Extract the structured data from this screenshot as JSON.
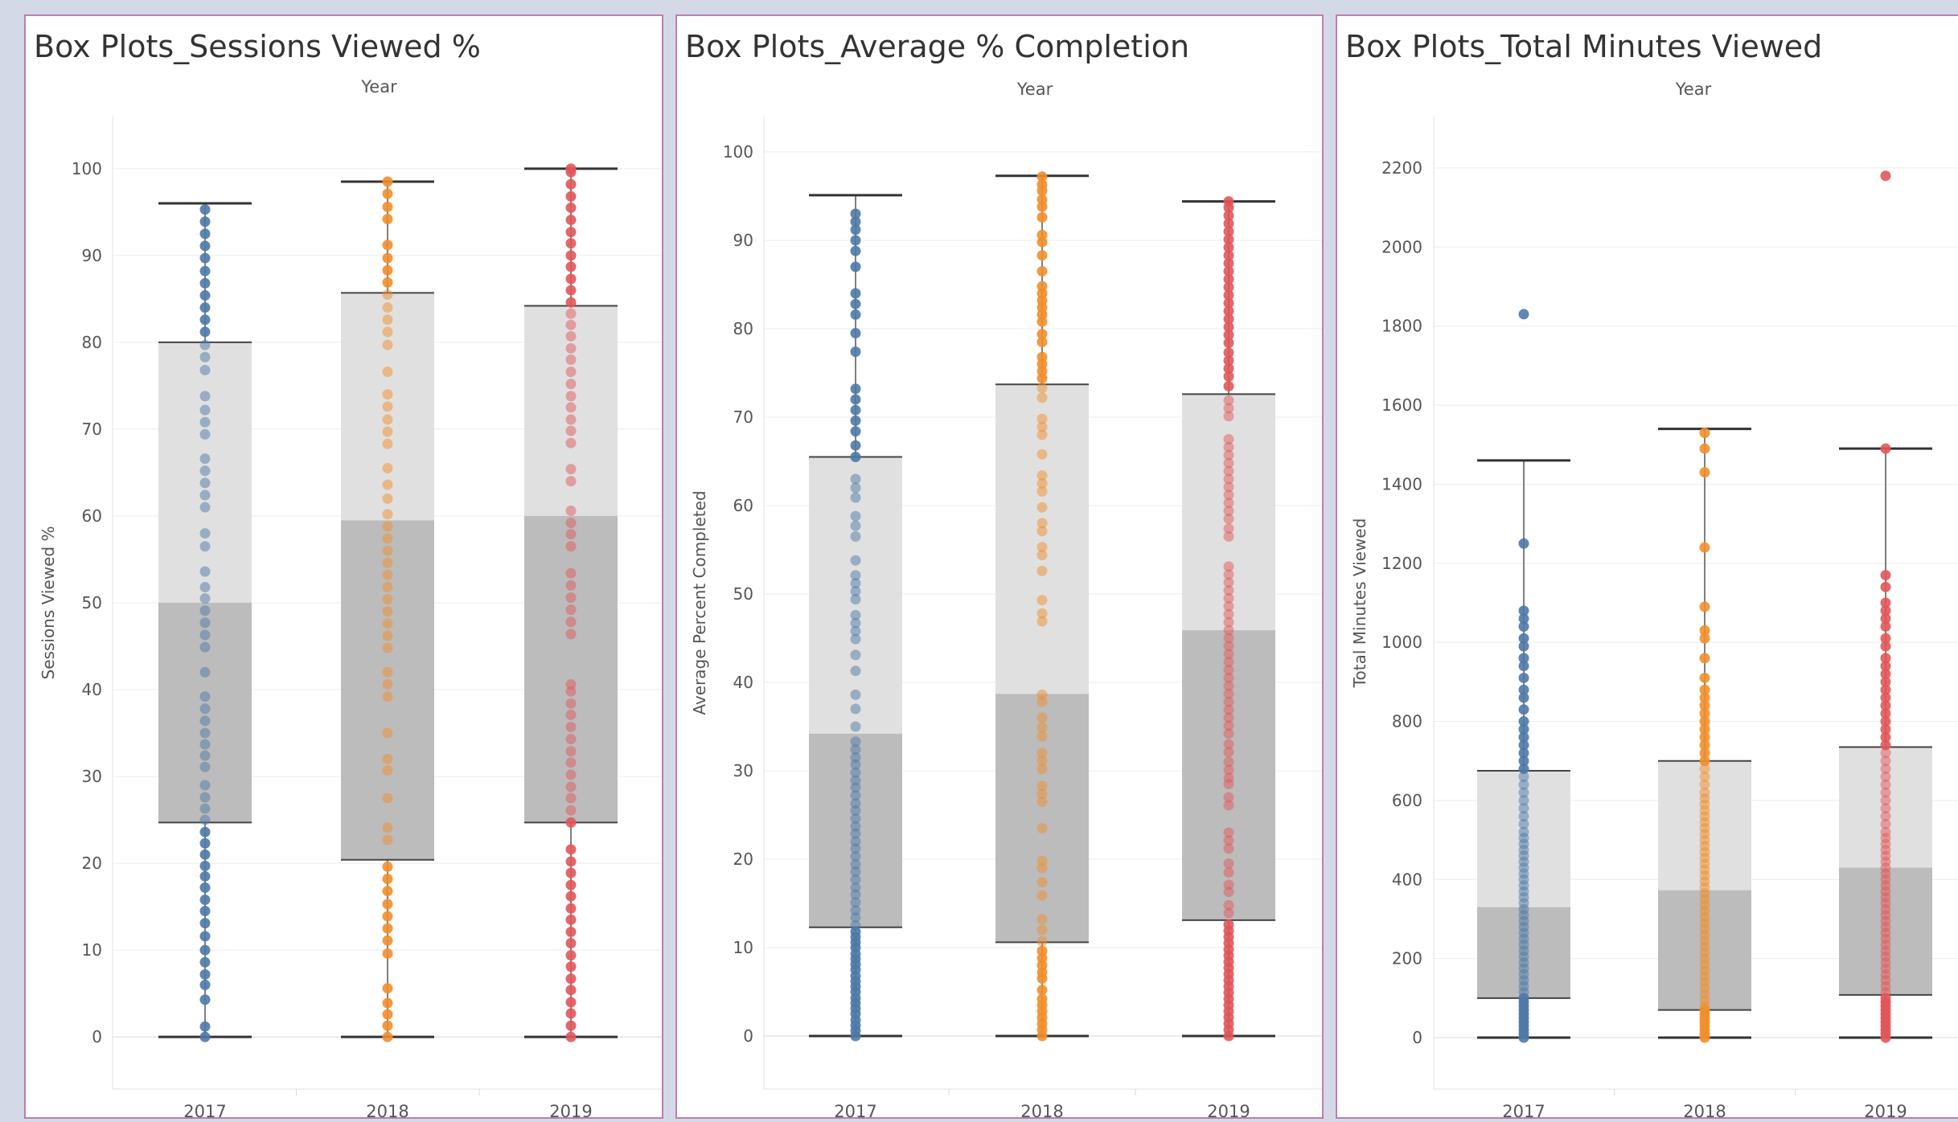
{
  "colors": {
    "2017": "#4e79a7",
    "2018": "#f28e2b",
    "2019": "#e15759",
    "box_upper": "#e0e0e0",
    "box_lower": "#bcbcbc",
    "grid": "#ececec",
    "panel_border": "#c27bb0"
  },
  "chart_data": [
    {
      "type": "box",
      "title": "Box Plots_Sessions Viewed %",
      "column_header": "Year",
      "ylabel": "Sessions Viewed %",
      "categories": [
        "2017",
        "2018",
        "2019"
      ],
      "ylim": [
        -6,
        106
      ],
      "yticks": [
        0,
        10,
        20,
        30,
        40,
        50,
        60,
        70,
        80,
        90,
        100
      ],
      "boxes": [
        {
          "category": "2017",
          "min": 0,
          "q1": 24.7,
          "median": 50,
          "q3": 80,
          "max": 96
        },
        {
          "category": "2018",
          "min": 0,
          "q1": 20.4,
          "median": 59.5,
          "q3": 85.7,
          "max": 98.5
        },
        {
          "category": "2019",
          "min": 0,
          "q1": 24.7,
          "median": 60,
          "q3": 84.2,
          "max": 100
        }
      ],
      "points": [
        [
          0,
          1.2,
          4.3,
          6,
          7.2,
          8.6,
          10,
          11.6,
          13.1,
          14.5,
          15.8,
          17.2,
          18.5,
          19.7,
          21,
          22.3,
          23.6,
          25,
          26.3,
          27.6,
          29,
          31.1,
          32.4,
          33.7,
          35,
          36.4,
          37.8,
          39.2,
          42,
          44.9,
          46.3,
          47.7,
          49.1,
          50.5,
          51.8,
          53.6,
          56.5,
          58,
          61,
          62.4,
          63.8,
          65.2,
          66.6,
          69.4,
          70.8,
          72.2,
          73.8,
          76.8,
          78.3,
          79.7,
          81.2,
          82.6,
          84,
          85.4,
          86.8,
          88.2,
          89.7,
          91.1,
          92.5,
          93.9,
          95.3
        ],
        [
          0,
          1.3,
          2.6,
          3.9,
          5.6,
          9.6,
          11.1,
          12.5,
          13.9,
          15.3,
          16.8,
          18.2,
          19.6,
          22.7,
          24.1,
          27.5,
          30.7,
          32,
          35,
          39.2,
          40.6,
          42,
          44.8,
          46.2,
          47.6,
          49,
          50.4,
          51.8,
          53.2,
          54.6,
          56,
          57.4,
          58.8,
          60.2,
          62,
          63.6,
          65.5,
          68.3,
          69.7,
          71.1,
          72.6,
          74,
          76.6,
          79.7,
          81.2,
          82.6,
          84,
          85.5,
          86.9,
          88.3,
          89.7,
          91.2,
          94.2,
          95.6,
          97.1,
          98.5
        ],
        [
          0,
          1.3,
          2.7,
          4,
          5.4,
          6.7,
          8.1,
          9.4,
          10.8,
          12.1,
          13.5,
          14.8,
          16.2,
          17.5,
          18.9,
          20.2,
          21.6,
          24.7,
          26.1,
          27.5,
          28.8,
          30.2,
          31.6,
          32.9,
          34.3,
          35.7,
          37.1,
          38.4,
          39.8,
          40.6,
          46.4,
          47.8,
          49.2,
          50.6,
          52,
          53.4,
          56.5,
          57.9,
          59.2,
          60.6,
          64,
          65.4,
          68.4,
          69.8,
          71.1,
          72.5,
          73.8,
          75.2,
          76.6,
          78,
          79.3,
          80.7,
          82,
          83.3,
          84.6,
          86,
          87.3,
          88.7,
          90,
          91.4,
          92.7,
          94.1,
          95.5,
          96.8,
          98.2,
          99.6,
          100
        ]
      ]
    },
    {
      "type": "box",
      "title": "Box Plots_Average % Completion",
      "column_header": "Year",
      "ylabel": "Average Percent Completed",
      "categories": [
        "2017",
        "2018",
        "2019"
      ],
      "ylim": [
        -6,
        104
      ],
      "yticks": [
        0,
        10,
        20,
        30,
        40,
        50,
        60,
        70,
        80,
        90,
        100
      ],
      "boxes": [
        {
          "category": "2017",
          "min": 0,
          "q1": 12.3,
          "median": 34.2,
          "q3": 65.5,
          "max": 95.1
        },
        {
          "category": "2018",
          "min": 0,
          "q1": 10.6,
          "median": 38.7,
          "q3": 73.7,
          "max": 97.3
        },
        {
          "category": "2019",
          "min": 0,
          "q1": 13.1,
          "median": 45.9,
          "q3": 72.6,
          "max": 94.4
        }
      ],
      "points": [
        [
          0,
          0.6,
          1.2,
          1.8,
          2.5,
          3.1,
          3.7,
          4.3,
          5,
          5.6,
          6.2,
          6.8,
          7.5,
          8.1,
          8.7,
          9.3,
          10,
          10.6,
          11.2,
          11.8,
          12.5,
          13.4,
          14.2,
          15.1,
          16,
          16.8,
          17.7,
          18.6,
          19.4,
          20.3,
          21.2,
          22,
          22.9,
          23.7,
          24.6,
          25.5,
          26.3,
          27.2,
          28.1,
          28.9,
          29.8,
          30.7,
          31.5,
          32.4,
          33.3,
          35,
          37,
          38.6,
          41.3,
          43.1,
          44.9,
          45.8,
          46.7,
          47.6,
          49.4,
          50.3,
          51.2,
          52.1,
          53.8,
          56.5,
          57.7,
          58.8,
          60.9,
          62,
          63,
          65.5,
          66.8,
          68.4,
          69.6,
          70.8,
          72,
          73.2,
          77.4,
          79.5,
          81.6,
          82.8,
          84,
          87,
          88.8,
          90,
          91.2,
          92.1,
          93
        ],
        [
          0,
          0.7,
          1.4,
          2.1,
          2.8,
          3.5,
          4.2,
          5.2,
          6.5,
          7.2,
          8,
          8.8,
          9.6,
          10.7,
          12,
          13.2,
          15.9,
          17.4,
          19,
          19.8,
          23.5,
          26.5,
          27.4,
          28.3,
          30.2,
          31.1,
          32,
          33.9,
          34.9,
          36,
          37.8,
          38.6,
          46.9,
          47.8,
          49.3,
          52.6,
          54.4,
          55.3,
          57.1,
          58,
          59.8,
          61.6,
          62.5,
          63.4,
          65.8,
          68,
          68.9,
          69.8,
          72.2,
          73.3,
          74.4,
          75.2,
          76,
          76.8,
          78.5,
          79.4,
          80.8,
          81.6,
          82.4,
          83.2,
          84,
          84.8,
          86.5,
          88.3,
          89.8,
          90.6,
          92.6,
          93.8,
          94.6,
          95.6,
          96.3,
          97.2
        ],
        [
          0,
          0.7,
          1.4,
          2.1,
          2.8,
          3.5,
          4.2,
          4.9,
          5.6,
          6.3,
          7,
          7.7,
          8.4,
          9.1,
          9.8,
          10.5,
          11.2,
          11.9,
          12.6,
          13.9,
          14.8,
          16.3,
          17.1,
          18.5,
          19.5,
          21.2,
          22.1,
          23,
          26.1,
          27,
          28.5,
          29.2,
          30.1,
          31,
          32.1,
          33,
          34.2,
          35.1,
          36,
          36.9,
          37.8,
          38.7,
          39.6,
          40.5,
          41.4,
          42.3,
          43.2,
          44.1,
          45,
          45.9,
          46.8,
          47.7,
          48.6,
          49.5,
          50.4,
          51.3,
          52.2,
          53.1,
          56.5,
          57.4,
          58.5,
          59.4,
          60.3,
          61.2,
          62.1,
          63,
          63.9,
          64.8,
          65.7,
          66.6,
          67.5,
          70.1,
          71,
          71.9,
          73.5,
          74.6,
          75.5,
          76.4,
          77.3,
          78.4,
          79.3,
          80.2,
          81.1,
          82,
          82.9,
          83.8,
          84.7,
          85.6,
          86.5,
          87.4,
          88.3,
          89.2,
          90.1,
          91,
          91.9,
          92.8,
          93.7,
          94.4
        ]
      ]
    },
    {
      "type": "box",
      "title": "Box Plots_Total Minutes Viewed",
      "column_header": "Year",
      "ylabel": "Total Minutes Viewed",
      "categories": [
        "2017",
        "2018",
        "2019"
      ],
      "ylim": [
        -130,
        2330
      ],
      "yticks": [
        0,
        200,
        400,
        600,
        800,
        1000,
        1200,
        1400,
        1600,
        1800,
        2000,
        2200
      ],
      "boxes": [
        {
          "category": "2017",
          "min": 0,
          "q1": 100,
          "median": 330,
          "q3": 675,
          "max": 1460
        },
        {
          "category": "2018",
          "min": 0,
          "q1": 70,
          "median": 373,
          "q3": 700,
          "max": 1540
        },
        {
          "category": "2019",
          "min": 0,
          "q1": 108,
          "median": 430,
          "q3": 735,
          "max": 1490
        }
      ],
      "points": [
        [
          0,
          10,
          20,
          30,
          40,
          50,
          60,
          70,
          80,
          90,
          100,
          115,
          130,
          145,
          160,
          175,
          190,
          205,
          220,
          235,
          250,
          265,
          280,
          295,
          310,
          325,
          340,
          355,
          370,
          385,
          400,
          415,
          430,
          445,
          460,
          475,
          490,
          505,
          520,
          540,
          560,
          580,
          600,
          620,
          640,
          660,
          680,
          700,
          720,
          740,
          760,
          780,
          800,
          830,
          860,
          880,
          910,
          940,
          960,
          990,
          1010,
          1040,
          1060,
          1080,
          1250,
          1830
        ],
        [
          0,
          10,
          20,
          30,
          40,
          50,
          60,
          70,
          80,
          95,
          110,
          125,
          140,
          155,
          170,
          185,
          200,
          215,
          230,
          245,
          260,
          275,
          290,
          305,
          320,
          335,
          350,
          365,
          380,
          395,
          410,
          425,
          440,
          455,
          470,
          485,
          500,
          515,
          530,
          545,
          560,
          575,
          590,
          605,
          620,
          640,
          660,
          680,
          700,
          720,
          740,
          760,
          780,
          800,
          820,
          840,
          860,
          880,
          910,
          960,
          1010,
          1030,
          1090,
          1240,
          1430,
          1490,
          1530
        ],
        [
          0,
          10,
          20,
          30,
          40,
          50,
          60,
          70,
          80,
          90,
          100,
          115,
          130,
          145,
          160,
          175,
          190,
          205,
          220,
          235,
          250,
          265,
          280,
          295,
          310,
          325,
          340,
          355,
          370,
          385,
          400,
          415,
          430,
          445,
          460,
          475,
          490,
          505,
          520,
          540,
          560,
          580,
          600,
          620,
          640,
          660,
          680,
          700,
          720,
          740,
          760,
          780,
          800,
          820,
          840,
          860,
          880,
          900,
          920,
          940,
          960,
          990,
          1010,
          1040,
          1060,
          1080,
          1100,
          1140,
          1170,
          1490,
          2180
        ]
      ]
    }
  ]
}
